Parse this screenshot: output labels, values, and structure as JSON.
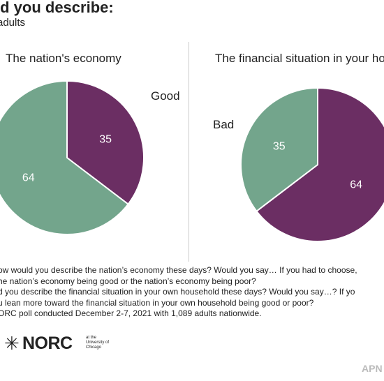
{
  "header": {
    "title": "ld you describe:",
    "subtitle": "adults"
  },
  "colors": {
    "good": "#6b2e63",
    "bad": "#73a58c",
    "label_text": "#ffffff"
  },
  "chart_data": [
    {
      "type": "pie",
      "title": "The nation's economy",
      "slices": [
        {
          "label": "Good",
          "value": 35,
          "color": "#6b2e63"
        },
        {
          "label": "",
          "value": 64,
          "color": "#73a58c"
        }
      ]
    },
    {
      "type": "pie",
      "title": "The financial situation in your hou",
      "slices": [
        {
          "label": "",
          "value": 64,
          "color": "#6b2e63"
        },
        {
          "label": "Bad",
          "value": 35,
          "color": "#73a58c"
        }
      ]
    }
  ],
  "notes": [
    "ow would you describe the nation’s economy these days? Would you say… If you had to choose,",
    "he nation’s economy being good or the nation’s economy being poor?",
    "d you describe the financial situation in your own household these days? Would you say…? If yo",
    "u lean more toward the financial situation in your own household being good or poor?",
    "ORC poll conducted December 2-7, 2021 with 1,089 adults nationwide."
  ],
  "logo": {
    "star": "✳",
    "name": "NORC",
    "small": "at the University of Chicago"
  },
  "credit": "APN"
}
